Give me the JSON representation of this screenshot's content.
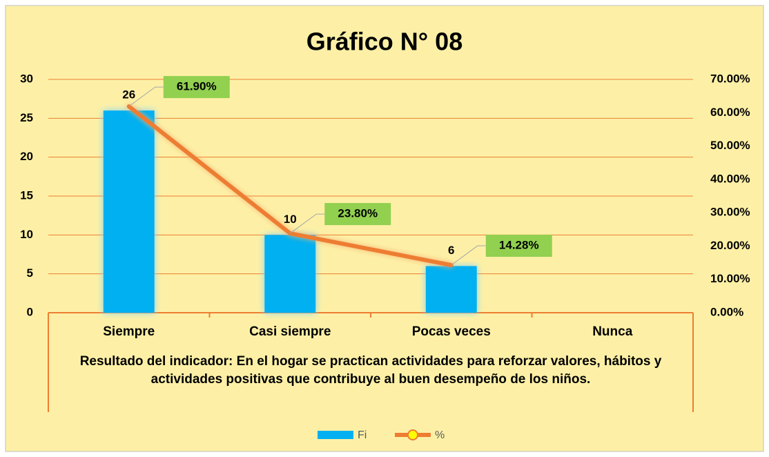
{
  "chart_data": {
    "type": "combo",
    "title": "Gráfico N° 08",
    "xlabel": "Resultado del indicador: En el hogar se practican actividades para reforzar valores, hábitos y actividades positivas que contribuye al buen desempeño de los niños.",
    "categories": [
      "Siempre",
      "Casi siempre",
      "Pocas veces",
      "Nunca"
    ],
    "series": [
      {
        "name": "Fi",
        "type": "bar",
        "color": "#00b0f0",
        "values": [
          26,
          10,
          6,
          null
        ]
      },
      {
        "name": "%",
        "type": "line",
        "axis": "y2",
        "color": "#ed7d31",
        "marker_color": "#ffff00",
        "values": [
          61.9,
          23.8,
          14.28,
          null
        ],
        "value_labels": [
          "61.90%",
          "23.80%",
          "14.28%",
          null
        ]
      }
    ],
    "ylim": [
      0,
      30
    ],
    "yticks": [
      0,
      5,
      10,
      15,
      20,
      25,
      30
    ],
    "y2lim": [
      0,
      70
    ],
    "y2ticks": [
      {
        "value": 0,
        "label": "0.00%"
      },
      {
        "value": 10,
        "label": "10.00%"
      },
      {
        "value": 20,
        "label": "20.00%"
      },
      {
        "value": 30,
        "label": "30.00%"
      },
      {
        "value": 40,
        "label": "40.00%"
      },
      {
        "value": 50,
        "label": "50.00%"
      },
      {
        "value": 60,
        "label": "60.00%"
      },
      {
        "value": 70,
        "label": "70.00%"
      }
    ],
    "grid": true,
    "legend": "bottom"
  }
}
